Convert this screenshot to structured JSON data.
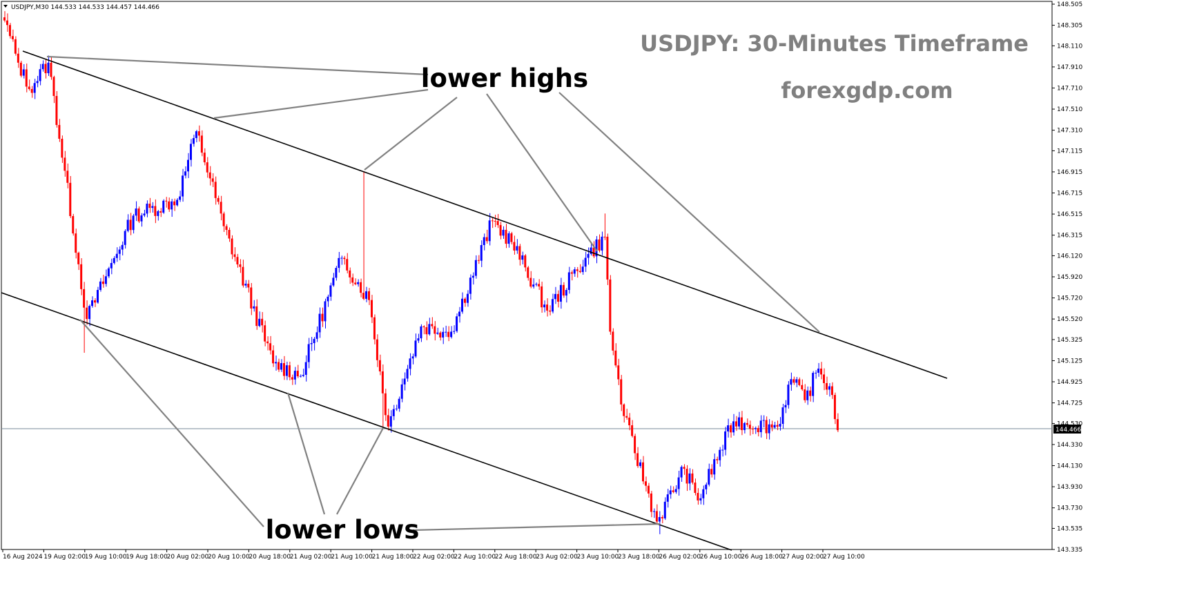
{
  "header": {
    "symbol_info": "USDJPY,M30  144.533 144.533 144.457 144.466",
    "title": "USDJPY: 30-Minutes Timeframe",
    "site": "forexgdp.com"
  },
  "annotations": {
    "lower_highs": "lower highs",
    "lower_lows": "lower lows"
  },
  "colors": {
    "bull": "#0000ff",
    "bear": "#ff0000",
    "channel": "#000000",
    "pointer": "#808080",
    "price_line": "#778899"
  },
  "chart_data": {
    "type": "candlestick",
    "title": "USDJPY: 30-Minutes Timeframe",
    "symbol": "USDJPY",
    "timeframe": "M30",
    "ohlc_header": {
      "open": 144.533,
      "high": 144.533,
      "low": 144.457,
      "close": 144.466
    },
    "current_price": "144.466",
    "ylim": [
      143.335,
      148.505
    ],
    "y_ticks": [
      "148.505",
      "148.305",
      "148.110",
      "147.910",
      "147.710",
      "147.510",
      "147.310",
      "147.115",
      "146.915",
      "146.715",
      "146.515",
      "146.315",
      "146.120",
      "145.920",
      "145.720",
      "145.520",
      "145.325",
      "145.125",
      "144.925",
      "144.725",
      "144.530",
      "144.330",
      "144.130",
      "143.930",
      "143.730",
      "143.535",
      "143.335"
    ],
    "x_ticks": [
      "16 Aug 2024",
      "19 Aug 02:00",
      "19 Aug 10:00",
      "19 Aug 18:00",
      "20 Aug 02:00",
      "20 Aug 10:00",
      "20 Aug 18:00",
      "21 Aug 02:00",
      "21 Aug 10:00",
      "21 Aug 18:00",
      "22 Aug 02:00",
      "22 Aug 10:00",
      "22 Aug 18:00",
      "23 Aug 02:00",
      "23 Aug 10:00",
      "23 Aug 18:00",
      "26 Aug 02:00",
      "26 Aug 10:00",
      "26 Aug 18:00",
      "27 Aug 02:00",
      "27 Aug 10:00"
    ],
    "key_closes": [
      {
        "bar": 0,
        "close": 148.35
      },
      {
        "bar": 5,
        "close": 147.95
      },
      {
        "bar": 9,
        "close": 147.7
      },
      {
        "bar": 16,
        "close": 147.95
      },
      {
        "bar": 30,
        "close": 145.52
      },
      {
        "bar": 47,
        "close": 146.5
      },
      {
        "bar": 63,
        "close": 146.65
      },
      {
        "bar": 70,
        "close": 147.3
      },
      {
        "bar": 80,
        "close": 146.4
      },
      {
        "bar": 98,
        "close": 145.1
      },
      {
        "bar": 108,
        "close": 144.98
      },
      {
        "bar": 123,
        "close": 146.1
      },
      {
        "bar": 133,
        "close": 145.7
      },
      {
        "bar": 140,
        "close": 144.5
      },
      {
        "bar": 145,
        "close": 144.9
      },
      {
        "bar": 152,
        "close": 145.45
      },
      {
        "bar": 163,
        "close": 145.4
      },
      {
        "bar": 178,
        "close": 146.45
      },
      {
        "bar": 185,
        "close": 146.25
      },
      {
        "bar": 198,
        "close": 145.6
      },
      {
        "bar": 212,
        "close": 146.1
      },
      {
        "bar": 219,
        "close": 146.3
      },
      {
        "bar": 221,
        "close": 145.4
      },
      {
        "bar": 226,
        "close": 144.6
      },
      {
        "bar": 238,
        "close": 143.6
      },
      {
        "bar": 248,
        "close": 144.1
      },
      {
        "bar": 253,
        "close": 143.8
      },
      {
        "bar": 266,
        "close": 144.55
      },
      {
        "bar": 282,
        "close": 144.5
      },
      {
        "bar": 287,
        "close": 144.95
      },
      {
        "bar": 292,
        "close": 144.75
      },
      {
        "bar": 297,
        "close": 145.05
      },
      {
        "bar": 302,
        "close": 144.8
      },
      {
        "bar": 304,
        "close": 144.466
      }
    ],
    "spikes": [
      {
        "bar": 29,
        "low": 145.2
      },
      {
        "bar": 131,
        "high": 146.92
      },
      {
        "bar": 138,
        "low": 144.5
      },
      {
        "bar": 219,
        "high": 146.52
      },
      {
        "bar": 239,
        "low": 143.48
      }
    ]
  }
}
